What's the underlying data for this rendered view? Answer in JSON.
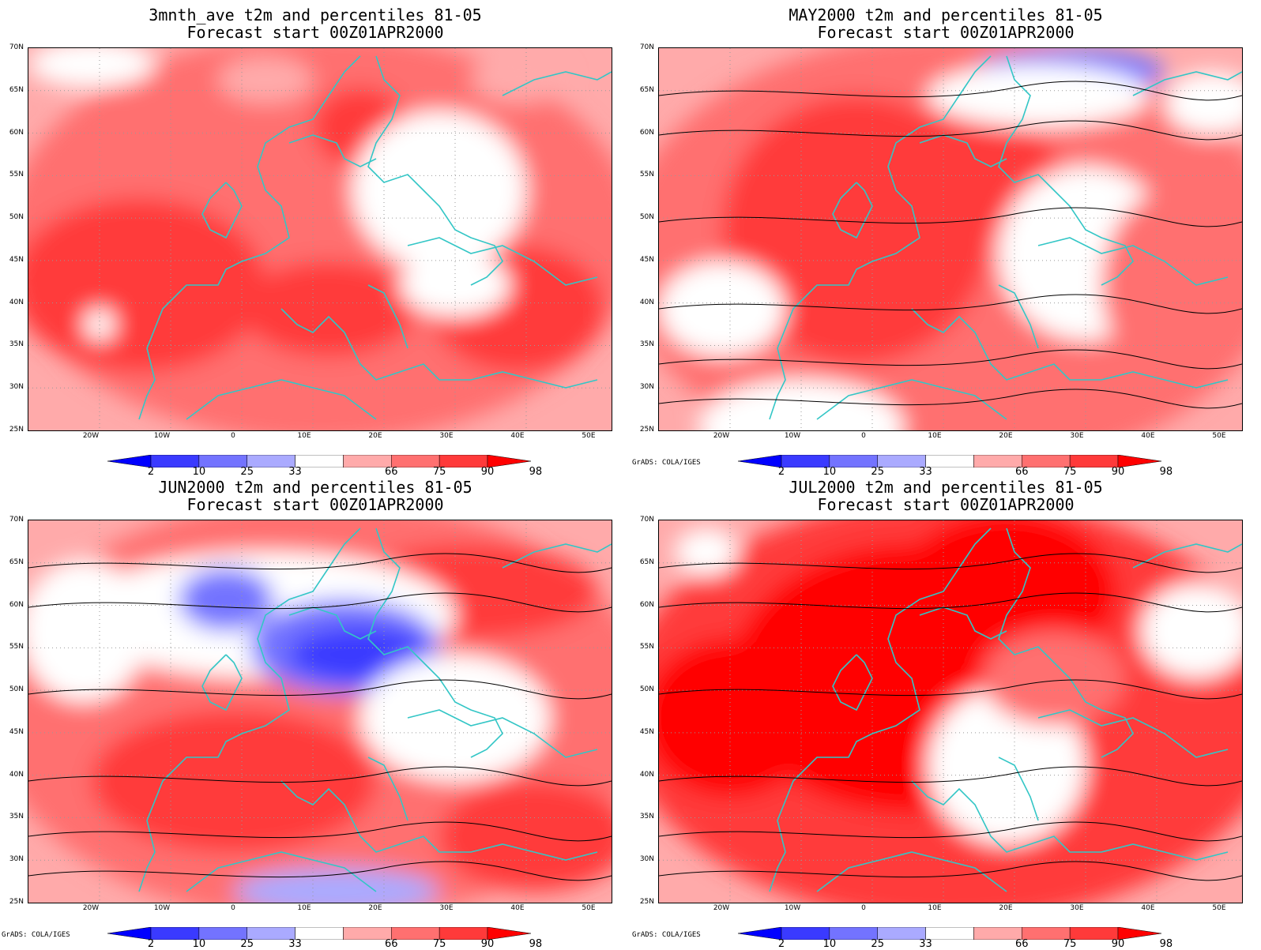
{
  "panels": [
    {
      "title": "3mnth_ave t2m and percentiles 81-05",
      "subtitle": "Forecast start 00Z01APR2000",
      "credit": "",
      "anomaly": "warm-broad"
    },
    {
      "title": "MAY2000 t2m and percentiles 81-05",
      "subtitle": "Forecast start 00Z01APR2000",
      "credit": "GrADS: COLA/IGES",
      "anomaly": "warm-central"
    },
    {
      "title": "JUN2000 t2m and percentiles 81-05",
      "subtitle": "Forecast start 00Z01APR2000",
      "credit": "GrADS: COLA/IGES",
      "anomaly": "cool-north"
    },
    {
      "title": "JUL2000 t2m and percentiles 81-05",
      "subtitle": "Forecast start 00Z01APR2000",
      "credit": "GrADS: COLA/IGES",
      "anomaly": "warm-north"
    }
  ],
  "lat_labels": [
    "70N",
    "65N",
    "60N",
    "55N",
    "50N",
    "45N",
    "40N",
    "35N",
    "30N",
    "25N"
  ],
  "lon_labels": [
    "20W",
    "10W",
    "0",
    "10E",
    "20E",
    "30E",
    "40E",
    "50E"
  ],
  "colorbar": {
    "labels": [
      "2",
      "10",
      "25",
      "33",
      "66",
      "75",
      "90",
      "98"
    ],
    "colors": [
      "#0000ff",
      "#3a3aff",
      "#7373ff",
      "#aaaaff",
      "#ffffff",
      "#ffaaaa",
      "#ff7070",
      "#ff3a3a",
      "#ff0000"
    ]
  },
  "colors": {
    "coast": "#33c6c6",
    "contour": "#000000",
    "grid": "#999999"
  }
}
